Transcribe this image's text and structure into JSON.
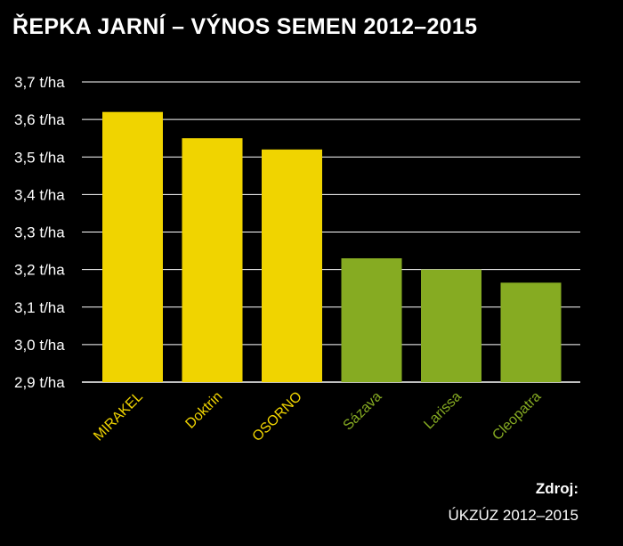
{
  "chart_data": {
    "type": "bar",
    "title": "ŘEPKA JARNÍ – VÝNOS SEMEN 2012–2015",
    "categories": [
      "MIRAKEL",
      "Doktrin",
      "OSORNO",
      "Sázava",
      "Larissa",
      "Cleopatra"
    ],
    "values": [
      3.62,
      3.55,
      3.52,
      3.23,
      3.2,
      3.165
    ],
    "category_colors": [
      "#f0d400",
      "#f0d400",
      "#f0d400",
      "#86ab22",
      "#86ab22",
      "#86ab22"
    ],
    "ylim": [
      2.9,
      3.7
    ],
    "yticks": [
      2.9,
      3.0,
      3.1,
      3.2,
      3.3,
      3.4,
      3.5,
      3.6,
      3.7
    ],
    "ytick_labels": [
      "2,9 t/ha",
      "3,0 t/ha",
      "3,1 t/ha",
      "3,2 t/ha",
      "3,3 t/ha",
      "3,4 t/ha",
      "3,5 t/ha",
      "3,6 t/ha",
      "3,7 t/ha"
    ],
    "grid": true,
    "background": "#000000"
  },
  "source": {
    "label": "Zdroj:",
    "text": "ÚKZÚZ 2012–2015"
  }
}
